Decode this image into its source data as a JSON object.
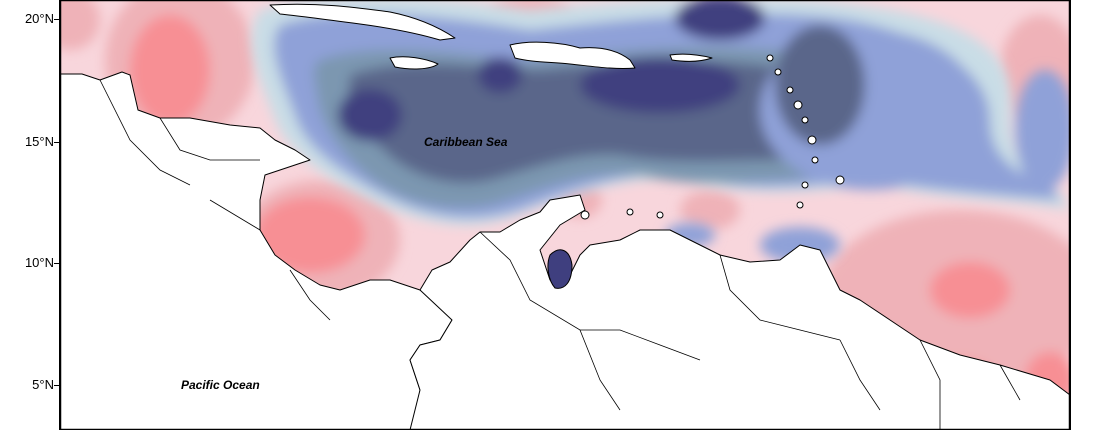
{
  "map": {
    "labels": {
      "caribbean": "Caribbean Sea",
      "pacific": "Pacific Ocean"
    },
    "axis": {
      "lat_ticks": [
        "20°N",
        "15°N",
        "10°N",
        "5°N"
      ]
    },
    "palette": {
      "navy": "#3f3f7f",
      "slate": "#5a668a",
      "steel": "#7b97b0",
      "periwinkle": "#8fa1d8",
      "pale_blue": "#c9dde6",
      "pale_pink": "#f8d6dc",
      "rose": "#efb2b8",
      "salmon": "#f78f94",
      "land": "#ffffff",
      "border": "#000000"
    }
  }
}
